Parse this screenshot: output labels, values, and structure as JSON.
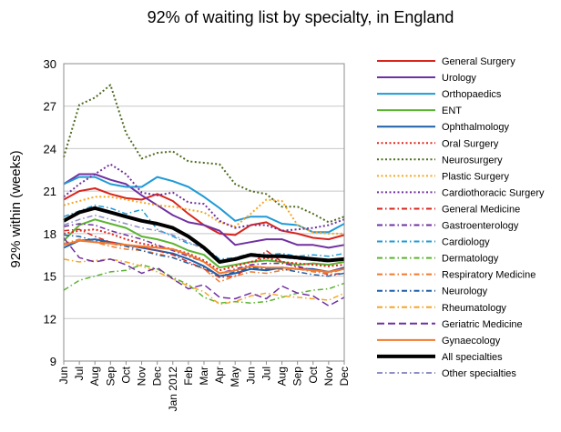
{
  "chart_data": {
    "type": "line",
    "title": "92% of waiting list by specialty, in England",
    "ylabel": "92% within (weeks)",
    "xlabel": "",
    "ylim": [
      9,
      30
    ],
    "yticks": [
      9,
      12,
      15,
      18,
      21,
      24,
      27,
      30
    ],
    "categories": [
      "Jun",
      "Jul",
      "Aug",
      "Sep",
      "Oct",
      "Nov",
      "Dec",
      "Jan 2012",
      "Feb",
      "Mar",
      "Apr",
      "May",
      "Jun",
      "Jul",
      "Aug",
      "Sep",
      "Oct",
      "Nov",
      "Dec"
    ],
    "legend_position": "right",
    "grid": true,
    "series": [
      {
        "name": "General Surgery",
        "color": "#d7261e",
        "dash": "solid",
        "width": 2,
        "values": [
          20.4,
          21.0,
          21.2,
          20.8,
          20.5,
          20.4,
          20.8,
          20.3,
          19.4,
          18.6,
          18.0,
          17.9,
          18.6,
          18.8,
          18.2,
          18.0,
          17.7,
          17.6,
          17.9
        ]
      },
      {
        "name": "Urology",
        "color": "#7030a0",
        "dash": "solid",
        "width": 2,
        "values": [
          21.5,
          22.2,
          22.2,
          21.8,
          21.5,
          20.7,
          20.0,
          19.3,
          18.8,
          18.6,
          18.2,
          17.2,
          17.4,
          17.6,
          17.6,
          17.2,
          17.2,
          17.0,
          17.2
        ]
      },
      {
        "name": "Orthopaedics",
        "color": "#1f9ad6",
        "dash": "solid",
        "width": 2,
        "values": [
          21.5,
          22.0,
          22.0,
          21.5,
          21.3,
          21.3,
          22.0,
          21.7,
          21.3,
          20.6,
          19.8,
          18.9,
          19.2,
          19.2,
          18.7,
          18.6,
          18.1,
          18.1,
          18.7
        ]
      },
      {
        "name": "ENT",
        "color": "#5bb431",
        "dash": "solid",
        "width": 2,
        "values": [
          17.5,
          18.6,
          19.0,
          18.7,
          18.4,
          17.8,
          17.6,
          17.3,
          16.8,
          16.5,
          15.6,
          15.8,
          16.0,
          16.1,
          16.0,
          15.8,
          15.9,
          15.8,
          16.0
        ]
      },
      {
        "name": "Ophthalmology",
        "color": "#1f5fa8",
        "dash": "solid",
        "width": 2,
        "values": [
          17.0,
          17.5,
          17.6,
          17.4,
          17.2,
          17.0,
          16.8,
          16.6,
          16.2,
          15.7,
          15.0,
          15.2,
          15.5,
          15.4,
          15.6,
          15.5,
          15.5,
          15.3,
          15.6
        ]
      },
      {
        "name": "Oral Surgery",
        "color": "#e0261c",
        "dash": "dot",
        "width": 2,
        "values": [
          18.0,
          18.2,
          18.3,
          18.0,
          17.6,
          17.3,
          17.1,
          16.9,
          16.6,
          16.1,
          15.4,
          15.7,
          16.0,
          16.3,
          16.0,
          15.9,
          15.8,
          15.7,
          15.8
        ]
      },
      {
        "name": "Neurosurgery",
        "color": "#4e6b1f",
        "dash": "dot",
        "width": 2,
        "values": [
          23.4,
          27.1,
          27.6,
          28.5,
          25.1,
          23.3,
          23.7,
          23.8,
          23.1,
          23.0,
          22.9,
          21.5,
          21.0,
          20.8,
          19.9,
          19.9,
          19.4,
          18.8,
          19.2
        ]
      },
      {
        "name": "Plastic Surgery",
        "color": "#f5a623",
        "dash": "dot",
        "width": 2,
        "values": [
          20.0,
          20.3,
          20.6,
          20.6,
          20.4,
          20.2,
          20.0,
          19.9,
          19.7,
          19.5,
          18.8,
          18.5,
          19.4,
          20.4,
          20.3,
          18.6,
          18.1,
          18.0,
          18.0
        ]
      },
      {
        "name": "Cardiothoracic Surgery",
        "color": "#7030a0",
        "dash": "dot",
        "width": 2,
        "values": [
          20.6,
          21.5,
          22.2,
          22.9,
          22.2,
          20.9,
          20.7,
          20.9,
          20.2,
          20.1,
          18.9,
          18.4,
          18.6,
          18.6,
          18.2,
          18.3,
          18.4,
          18.6,
          19.0
        ]
      },
      {
        "name": "General Medicine",
        "color": "#d7261e",
        "dash": "dashdot",
        "width": 1.5,
        "values": [
          18.2,
          18.3,
          17.8,
          17.4,
          17.2,
          17.0,
          16.8,
          16.5,
          16.0,
          15.5,
          14.9,
          15.0,
          15.7,
          16.8,
          16.0,
          15.6,
          15.4,
          15.1,
          15.2
        ]
      },
      {
        "name": "Gastroenterology",
        "color": "#7030a0",
        "dash": "dashdot",
        "width": 1.5,
        "values": [
          18.5,
          18.7,
          18.6,
          18.2,
          17.9,
          17.6,
          17.2,
          16.8,
          16.4,
          16.0,
          15.2,
          15.5,
          15.8,
          15.9,
          15.9,
          15.7,
          15.4,
          15.3,
          15.6
        ]
      },
      {
        "name": "Cardiology",
        "color": "#1f9ad6",
        "dash": "dashdot",
        "width": 1.5,
        "values": [
          19.2,
          19.6,
          20.0,
          19.8,
          19.4,
          19.7,
          18.3,
          17.8,
          17.3,
          17.1,
          16.2,
          16.3,
          16.6,
          16.5,
          16.6,
          16.4,
          16.5,
          16.4,
          16.6
        ]
      },
      {
        "name": "Dermatology",
        "color": "#5bb431",
        "dash": "dashdot",
        "width": 1.5,
        "values": [
          14.0,
          14.7,
          15.0,
          15.3,
          15.4,
          15.8,
          15.5,
          14.9,
          14.4,
          13.5,
          13.1,
          13.2,
          13.1,
          13.2,
          13.5,
          13.8,
          14.0,
          14.1,
          14.5
        ]
      },
      {
        "name": "Respiratory Medicine",
        "color": "#f07a2e",
        "dash": "dashdot",
        "width": 1.5,
        "values": [
          17.3,
          17.6,
          17.4,
          17.1,
          16.9,
          16.8,
          16.6,
          16.3,
          15.9,
          15.5,
          14.6,
          15.0,
          15.3,
          15.2,
          15.4,
          15.5,
          15.3,
          15.2,
          15.5
        ]
      },
      {
        "name": "Neurology",
        "color": "#1f5fa8",
        "dash": "dashdot",
        "width": 1.5,
        "values": [
          17.9,
          17.8,
          17.5,
          17.3,
          17.1,
          16.8,
          16.5,
          16.3,
          15.9,
          15.6,
          15.0,
          15.3,
          15.6,
          15.5,
          15.5,
          15.3,
          15.1,
          15.0,
          15.2
        ]
      },
      {
        "name": "Rheumatology",
        "color": "#f5a623",
        "dash": "dashdot",
        "width": 1.5,
        "values": [
          16.2,
          16.0,
          16.1,
          16.2,
          16.0,
          15.7,
          15.3,
          14.8,
          14.3,
          13.9,
          13.0,
          13.2,
          13.6,
          13.8,
          13.6,
          13.5,
          13.4,
          13.3,
          13.8
        ]
      },
      {
        "name": "Geriatric Medicine",
        "color": "#7030a0",
        "dash": "longdash",
        "width": 1.5,
        "values": [
          17.7,
          16.3,
          16.0,
          16.2,
          15.8,
          15.2,
          15.6,
          14.8,
          14.1,
          14.4,
          13.5,
          13.4,
          13.8,
          13.4,
          14.3,
          13.8,
          13.6,
          12.9,
          13.5
        ]
      },
      {
        "name": "Gynaecology",
        "color": "#f07a2e",
        "dash": "solid",
        "width": 2,
        "values": [
          17.2,
          17.5,
          17.4,
          17.3,
          17.2,
          17.1,
          17.0,
          16.9,
          16.5,
          16.0,
          15.2,
          15.4,
          15.7,
          15.6,
          15.6,
          15.5,
          15.4,
          15.3,
          15.5
        ]
      },
      {
        "name": "All specialties",
        "color": "#000000",
        "dash": "solid",
        "width": 4,
        "values": [
          18.9,
          19.5,
          19.8,
          19.5,
          19.2,
          18.9,
          18.7,
          18.4,
          17.8,
          17.0,
          16.0,
          16.2,
          16.5,
          16.4,
          16.4,
          16.3,
          16.2,
          16.1,
          16.2
        ]
      },
      {
        "name": "Other specialties",
        "color": "#8e8ec4",
        "dash": "dashdot",
        "width": 1.5,
        "values": [
          18.6,
          19.0,
          19.3,
          19.0,
          18.7,
          18.4,
          18.2,
          17.9,
          17.4,
          16.9,
          16.1,
          16.2,
          16.5,
          16.4,
          16.3,
          16.2,
          16.1,
          16.0,
          16.3
        ]
      }
    ]
  }
}
